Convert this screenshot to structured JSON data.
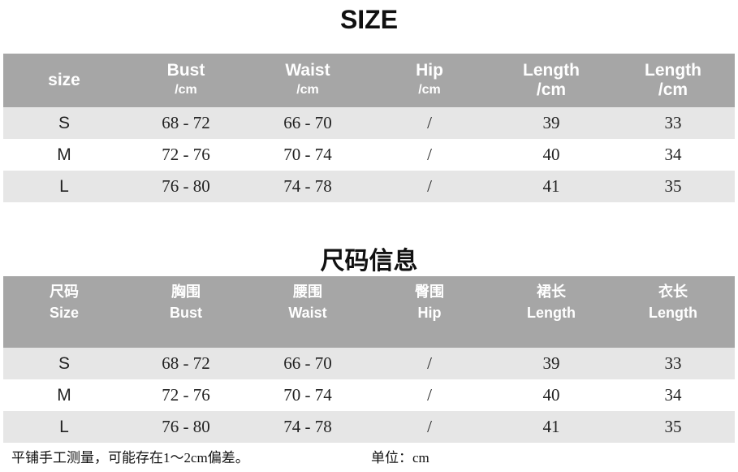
{
  "title_en": "SIZE",
  "title_cn": "尺码信息",
  "table_en": {
    "headers": [
      [
        "size",
        ""
      ],
      [
        "Bust",
        "/cm"
      ],
      [
        "Waist",
        "/cm"
      ],
      [
        "Hip",
        "/cm"
      ],
      [
        "Length",
        "/cm"
      ],
      [
        "Length",
        "/cm"
      ]
    ],
    "rows": [
      [
        "S",
        "68 - 72",
        "66 - 70",
        "/",
        "39",
        "33"
      ],
      [
        "M",
        "72 - 76",
        "70 - 74",
        "/",
        "40",
        "34"
      ],
      [
        "L",
        "76 - 80",
        "74 - 78",
        "/",
        "41",
        "35"
      ]
    ]
  },
  "table_cn": {
    "headers": [
      [
        "尺码",
        "Size"
      ],
      [
        "胸围",
        "Bust"
      ],
      [
        "腰围",
        "Waist"
      ],
      [
        "臀围",
        "Hip"
      ],
      [
        "裙长",
        "Length"
      ],
      [
        "衣长",
        "Length"
      ]
    ],
    "rows": [
      [
        "S",
        "68 - 72",
        "66 - 70",
        "/",
        "39",
        "33"
      ],
      [
        "M",
        "72 - 76",
        "70 - 74",
        "/",
        "40",
        "34"
      ],
      [
        "L",
        "76 - 80",
        "74 - 78",
        "/",
        "41",
        "35"
      ]
    ]
  },
  "note": "平铺手工测量，可能存在1～2cm偏差。",
  "unit": "单位：cm",
  "colors": {
    "header_bg": "#a6a6a6",
    "stripe": "#e6e6e6"
  }
}
